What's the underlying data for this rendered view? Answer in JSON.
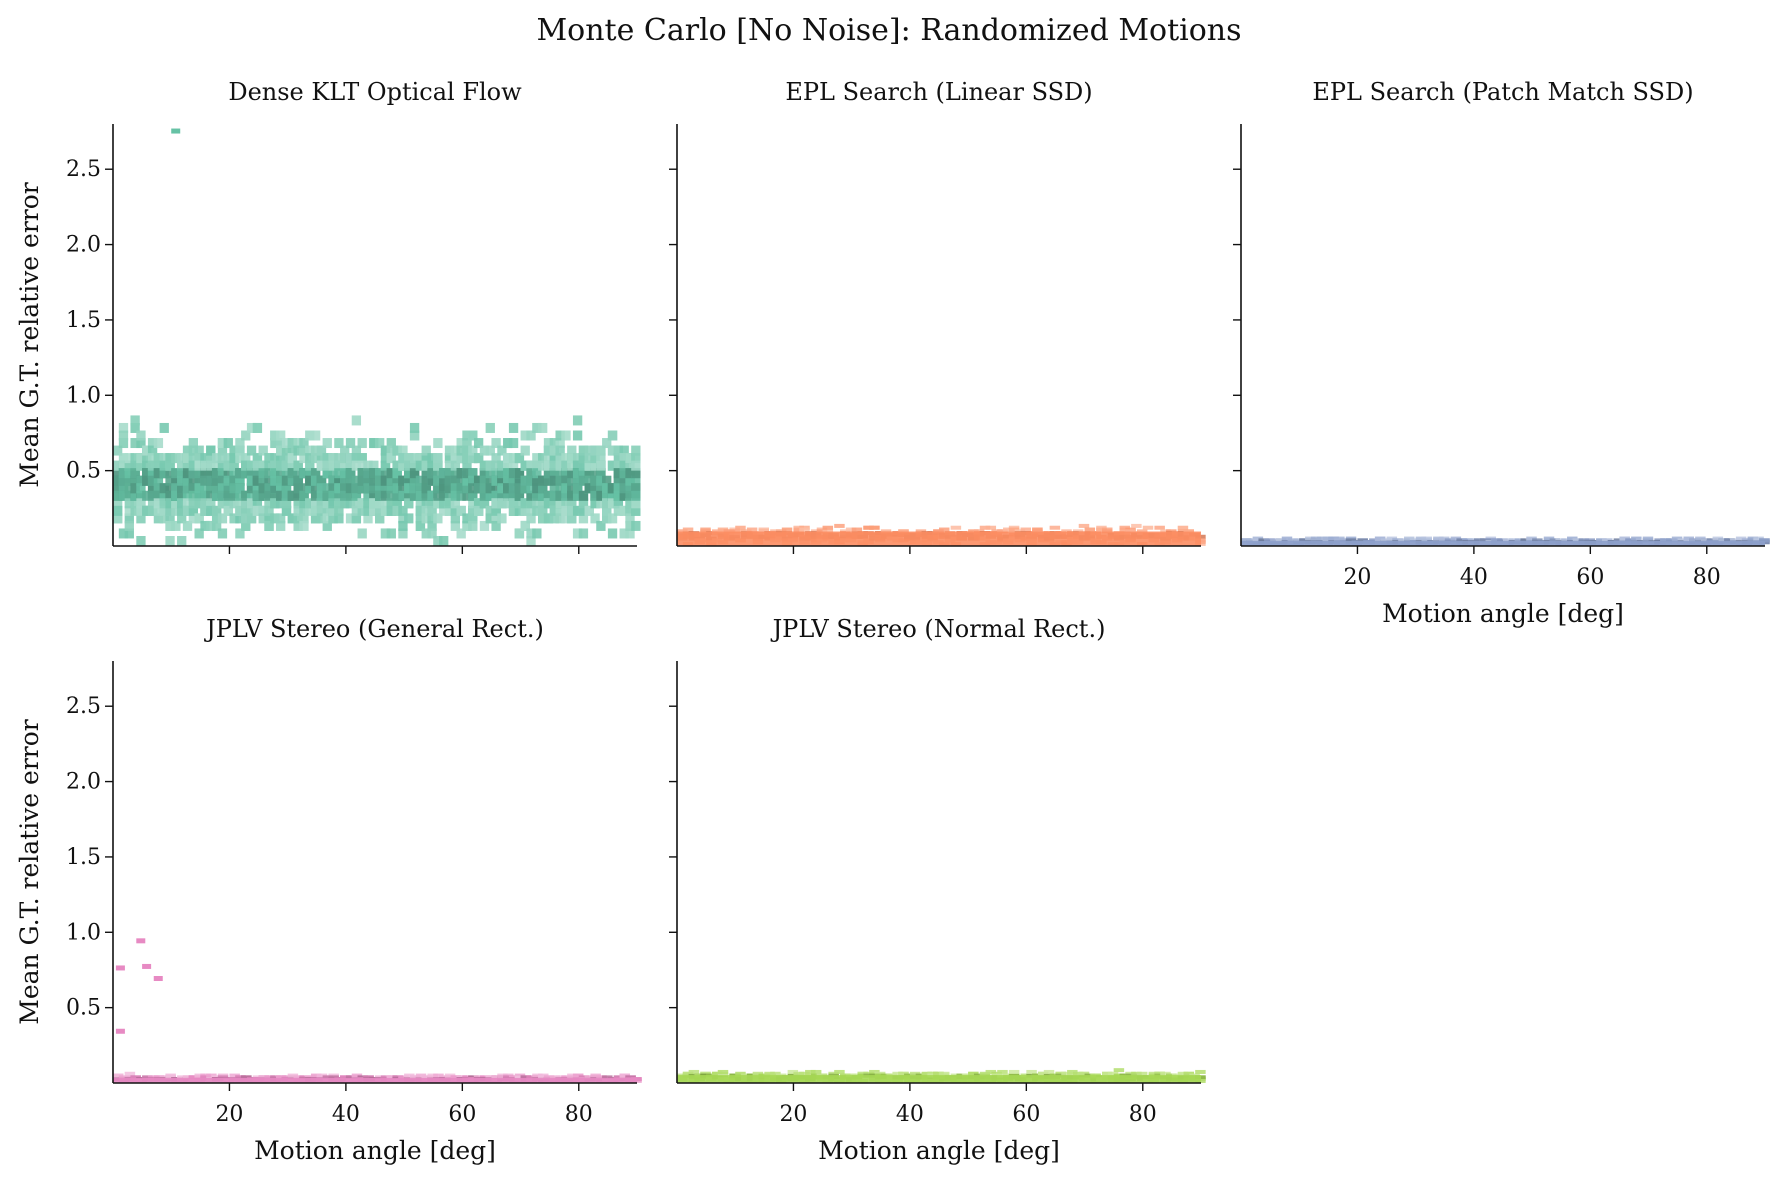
{
  "figure": {
    "title": "Monte Carlo [No Noise]: Randomized Motions"
  },
  "chart_data": [
    {
      "type": "heatmap",
      "title": "Dense KLT Optical Flow",
      "xlabel": "",
      "ylabel": "Mean G.T. relative error",
      "xlim": [
        0,
        90
      ],
      "ylim": [
        0,
        2.8
      ],
      "xticks": [],
      "yticks": [
        "0.5",
        "1.0",
        "1.5",
        "2.0",
        "2.5"
      ],
      "color": "#66c2a5",
      "distribution": {
        "y_center": 0.4,
        "y_spread": 0.2,
        "y_max": 1.0,
        "outliers": [
          [
            10,
            2.75
          ]
        ]
      }
    },
    {
      "type": "heatmap",
      "title": "EPL Search (Linear SSD)",
      "xlabel": "",
      "ylabel": "",
      "xlim": [
        0,
        90
      ],
      "ylim": [
        0,
        2.8
      ],
      "xticks": [],
      "yticks": [],
      "color": "#fc8d62",
      "distribution": {
        "y_center": 0.06,
        "y_spread": 0.04,
        "y_max": 0.22
      }
    },
    {
      "type": "heatmap",
      "title": "EPL Search (Patch Match SSD)",
      "xlabel": "Motion angle [deg]",
      "ylabel": "",
      "xlim": [
        0,
        90
      ],
      "ylim": [
        0,
        2.8
      ],
      "xticks": [
        "20",
        "40",
        "60",
        "80"
      ],
      "yticks": [],
      "color": "#8da0cb",
      "distribution": {
        "y_center": 0.02,
        "y_spread": 0.015,
        "y_max": 0.05
      }
    },
    {
      "type": "heatmap",
      "title": "JPLV Stereo (General Rect.)",
      "xlabel": "Motion angle [deg]",
      "ylabel": "Mean G.T. relative error",
      "xlim": [
        0,
        90
      ],
      "ylim": [
        0,
        2.8
      ],
      "xticks": [
        "20",
        "40",
        "60",
        "80"
      ],
      "yticks": [
        "0.5",
        "1.0",
        "1.5",
        "2.0",
        "2.5"
      ],
      "color": "#e78ac3",
      "distribution": {
        "y_center": 0.02,
        "y_spread": 0.015,
        "y_max": 0.05,
        "outliers": [
          [
            0.5,
            0.76
          ],
          [
            4,
            0.94
          ],
          [
            5,
            0.77
          ],
          [
            7,
            0.69
          ],
          [
            0.5,
            0.34
          ]
        ]
      }
    },
    {
      "type": "heatmap",
      "title": "JPLV Stereo (Normal Rect.)",
      "xlabel": "Motion angle [deg]",
      "ylabel": "",
      "xlim": [
        0,
        90
      ],
      "ylim": [
        0,
        2.8
      ],
      "xticks": [
        "20",
        "40",
        "60",
        "80"
      ],
      "yticks": [],
      "color": "#a6d854",
      "distribution": {
        "y_center": 0.03,
        "y_spread": 0.025,
        "y_max": 0.25
      }
    }
  ]
}
